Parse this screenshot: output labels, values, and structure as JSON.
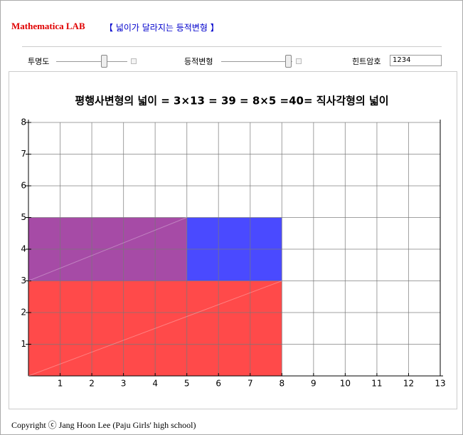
{
  "header": {
    "title": "Mathematica LAB",
    "subtitle": "【 넓이가 달라지는 등적변형 】"
  },
  "controls": {
    "opacity_label": "투명도",
    "transform_label": "등적변형",
    "hint_label": "힌트암호",
    "hint_value": "1234"
  },
  "chart_data": {
    "type": "rect",
    "title": "평행사변형의 넓이 = 3×13 =  39 = 8×5 =40= 직사각형의 넓이",
    "xlim": [
      0,
      13
    ],
    "ylim": [
      0,
      8
    ],
    "xticks": [
      1,
      2,
      3,
      4,
      5,
      6,
      7,
      8,
      9,
      10,
      11,
      12,
      13
    ],
    "yticks": [
      1,
      2,
      3,
      4,
      5,
      6,
      7,
      8
    ],
    "grid": true,
    "rects": [
      {
        "x": [
          0,
          8
        ],
        "y": [
          0,
          3
        ],
        "color": "#ff4a4a"
      },
      {
        "x": [
          0,
          5
        ],
        "y": [
          3,
          5
        ],
        "color": "#a64ba6"
      },
      {
        "x": [
          5,
          8
        ],
        "y": [
          3,
          5
        ],
        "color": "#4a4aff"
      }
    ]
  },
  "footer": "Copyright ⓒ Jang Hoon Lee (Paju Girls' high school)"
}
